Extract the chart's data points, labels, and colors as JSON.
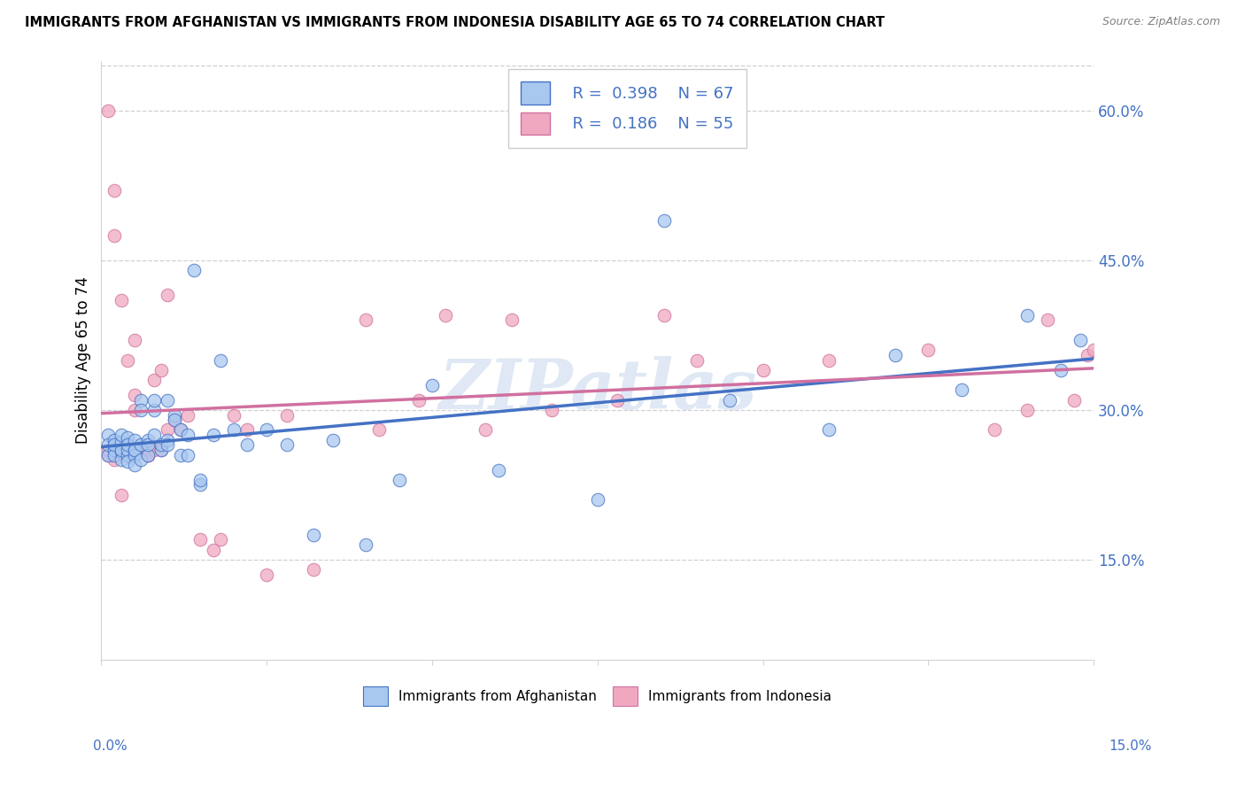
{
  "title": "IMMIGRANTS FROM AFGHANISTAN VS IMMIGRANTS FROM INDONESIA DISABILITY AGE 65 TO 74 CORRELATION CHART",
  "source": "Source: ZipAtlas.com",
  "ylabel": "Disability Age 65 to 74",
  "xmin": 0.0,
  "xmax": 0.15,
  "ymin": 0.05,
  "ymax": 0.65,
  "yticks": [
    0.15,
    0.3,
    0.45,
    0.6
  ],
  "xticks_hidden": [
    0.0,
    0.025,
    0.05,
    0.075,
    0.1,
    0.125,
    0.15
  ],
  "legend_r1": "0.398",
  "legend_n1": "67",
  "legend_r2": "0.186",
  "legend_n2": "55",
  "color_afghanistan": "#a8c8f0",
  "color_indonesia": "#f0a8c0",
  "color_line_afghanistan": "#4472c4",
  "color_line_indonesia": "#e06090",
  "color_text_blue": "#4472c4",
  "color_text_pink": "#d070a0",
  "color_grid": "#d0d0d0",
  "watermark": "ZIPatlas",
  "afghanistan_x": [
    0.001,
    0.001,
    0.001,
    0.002,
    0.002,
    0.002,
    0.002,
    0.003,
    0.003,
    0.003,
    0.003,
    0.003,
    0.004,
    0.004,
    0.004,
    0.004,
    0.004,
    0.005,
    0.005,
    0.005,
    0.005,
    0.005,
    0.006,
    0.006,
    0.006,
    0.006,
    0.007,
    0.007,
    0.007,
    0.008,
    0.008,
    0.008,
    0.009,
    0.009,
    0.01,
    0.01,
    0.01,
    0.011,
    0.011,
    0.012,
    0.012,
    0.013,
    0.013,
    0.014,
    0.015,
    0.015,
    0.017,
    0.018,
    0.02,
    0.022,
    0.025,
    0.028,
    0.032,
    0.035,
    0.04,
    0.045,
    0.05,
    0.06,
    0.075,
    0.085,
    0.095,
    0.11,
    0.12,
    0.13,
    0.14,
    0.145,
    0.148
  ],
  "afghanistan_y": [
    0.275,
    0.255,
    0.265,
    0.26,
    0.255,
    0.27,
    0.265,
    0.258,
    0.25,
    0.268,
    0.26,
    0.275,
    0.255,
    0.26,
    0.272,
    0.248,
    0.265,
    0.26,
    0.27,
    0.255,
    0.245,
    0.26,
    0.31,
    0.265,
    0.25,
    0.3,
    0.255,
    0.27,
    0.265,
    0.275,
    0.3,
    0.31,
    0.26,
    0.265,
    0.27,
    0.265,
    0.31,
    0.295,
    0.29,
    0.255,
    0.28,
    0.255,
    0.275,
    0.44,
    0.225,
    0.23,
    0.275,
    0.35,
    0.28,
    0.265,
    0.28,
    0.265,
    0.175,
    0.27,
    0.165,
    0.23,
    0.325,
    0.24,
    0.21,
    0.49,
    0.31,
    0.28,
    0.355,
    0.32,
    0.395,
    0.34,
    0.37
  ],
  "indonesia_x": [
    0.001,
    0.001,
    0.001,
    0.002,
    0.002,
    0.002,
    0.002,
    0.003,
    0.003,
    0.004,
    0.004,
    0.004,
    0.005,
    0.005,
    0.005,
    0.006,
    0.006,
    0.007,
    0.007,
    0.008,
    0.008,
    0.009,
    0.009,
    0.01,
    0.01,
    0.011,
    0.012,
    0.013,
    0.015,
    0.017,
    0.018,
    0.02,
    0.022,
    0.025,
    0.028,
    0.032,
    0.04,
    0.042,
    0.048,
    0.052,
    0.058,
    0.062,
    0.068,
    0.078,
    0.085,
    0.09,
    0.1,
    0.11,
    0.125,
    0.135,
    0.14,
    0.143,
    0.147,
    0.149,
    0.15
  ],
  "indonesia_y": [
    0.255,
    0.26,
    0.6,
    0.255,
    0.52,
    0.25,
    0.475,
    0.215,
    0.41,
    0.26,
    0.35,
    0.26,
    0.3,
    0.315,
    0.37,
    0.26,
    0.26,
    0.255,
    0.255,
    0.26,
    0.33,
    0.34,
    0.26,
    0.415,
    0.28,
    0.29,
    0.28,
    0.295,
    0.17,
    0.16,
    0.17,
    0.295,
    0.28,
    0.135,
    0.295,
    0.14,
    0.39,
    0.28,
    0.31,
    0.395,
    0.28,
    0.39,
    0.3,
    0.31,
    0.395,
    0.35,
    0.34,
    0.35,
    0.36,
    0.28,
    0.3,
    0.39,
    0.31,
    0.355,
    0.36
  ]
}
